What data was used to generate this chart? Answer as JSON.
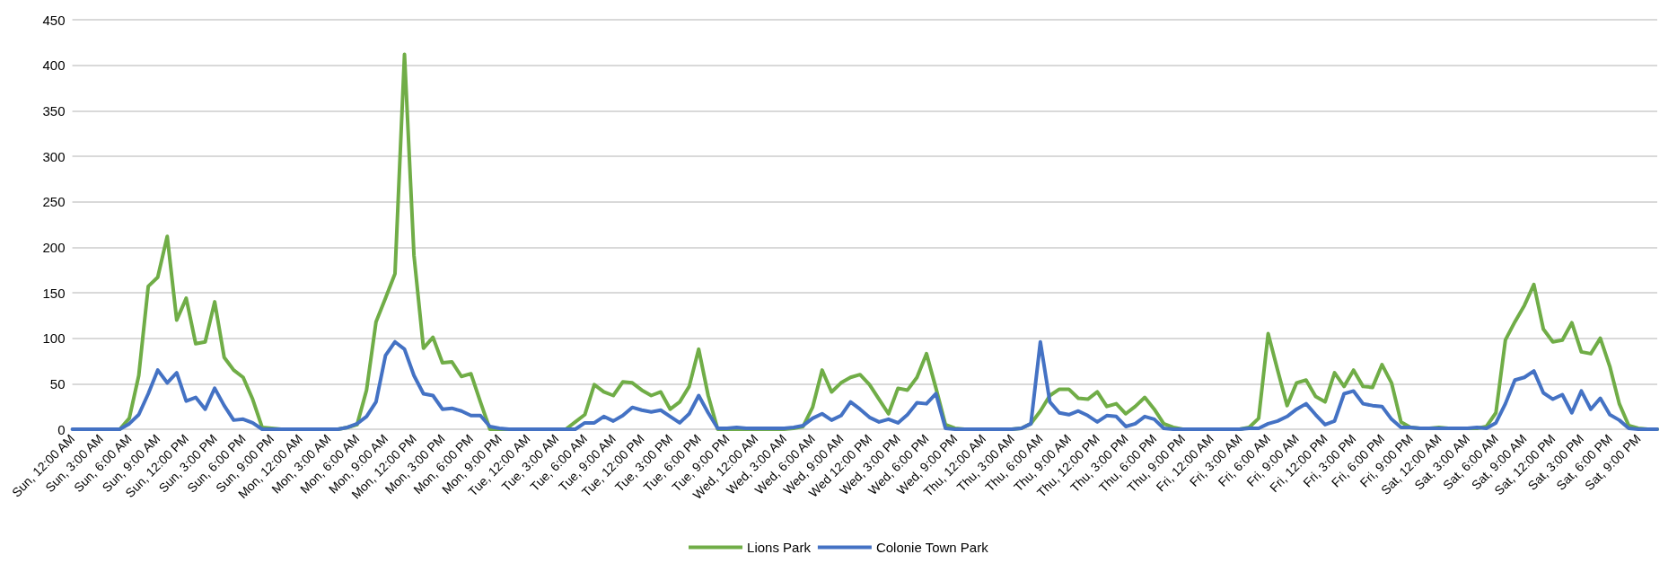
{
  "chart_data": {
    "type": "line",
    "categories": [
      "Sun, 12:00 AM",
      null,
      null,
      "Sun, 3:00 AM",
      null,
      null,
      "Sun, 6:00 AM",
      null,
      null,
      "Sun, 9:00 AM",
      null,
      null,
      "Sun, 12:00 PM",
      null,
      null,
      "Sun, 3:00 PM",
      null,
      null,
      "Sun, 6:00 PM",
      null,
      null,
      "Sun, 9:00 PM",
      null,
      null,
      "Mon, 12:00 AM",
      null,
      null,
      "Mon, 3:00 AM",
      null,
      null,
      "Mon, 6:00 AM",
      null,
      null,
      "Mon, 9:00 AM",
      null,
      null,
      "Mon, 12:00 PM",
      null,
      null,
      "Mon, 3:00 PM",
      null,
      null,
      "Mon, 6:00 PM",
      null,
      null,
      "Mon, 9:00 PM",
      null,
      null,
      "Tue, 12:00 AM",
      null,
      null,
      "Tue, 3:00 AM",
      null,
      null,
      "Tue, 6:00 AM",
      null,
      null,
      "Tue, 9:00 AM",
      null,
      null,
      "Tue, 12:00 PM",
      null,
      null,
      "Tue, 3:00 PM",
      null,
      null,
      "Tue, 6:00 PM",
      null,
      null,
      "Tue, 9:00 PM",
      null,
      null,
      "Wed, 12:00 AM",
      null,
      null,
      "Wed, 3:00 AM",
      null,
      null,
      "Wed, 6:00 AM",
      null,
      null,
      "Wed, 9:00 AM",
      null,
      null,
      "Wed 12:00 PM",
      null,
      null,
      "Wed, 3:00 PM",
      null,
      null,
      "Wed, 6:00 PM",
      null,
      null,
      "Wed, 9:00 PM",
      null,
      null,
      "Thu, 12:00 AM",
      null,
      null,
      "Thu, 3:00 AM",
      null,
      null,
      "Thu, 6:00 AM",
      null,
      null,
      "Thu, 9:00 AM",
      null,
      null,
      "Thu, 12:00 PM",
      null,
      null,
      "Thu, 3:00 PM",
      null,
      null,
      "Thu, 6:00 PM",
      null,
      null,
      "Thu, 9:00 PM",
      null,
      null,
      "Fri, 12:00 AM",
      null,
      null,
      "Fri, 3:00 AM",
      null,
      null,
      "Fri, 6:00 AM",
      null,
      null,
      "Fri, 9:00 AM",
      null,
      null,
      "Fri, 12:00 PM",
      null,
      null,
      "Fri, 3:00 PM",
      null,
      null,
      "Fri, 6:00 PM",
      null,
      null,
      "Fri, 9:00 PM",
      null,
      null,
      "Sat, 12:00 AM",
      null,
      null,
      "Sat, 3:00 AM",
      null,
      null,
      "Sat, 6:00 AM",
      null,
      null,
      "Sat, 9:00 AM",
      null,
      null,
      "Sat, 12:00 PM",
      null,
      null,
      "Sat, 3:00 PM",
      null,
      null,
      "Sat, 6:00 PM",
      null,
      null,
      "Sat, 9:00 PM",
      null,
      null
    ],
    "series": [
      {
        "name": "Lions Park",
        "color": "#70ad47",
        "values": [
          null,
          null,
          null,
          null,
          0,
          0,
          12,
          59,
          157,
          167,
          212,
          120,
          144,
          94,
          96,
          140,
          79,
          65,
          57,
          33,
          2,
          1,
          0,
          0,
          0,
          0,
          0,
          0,
          0,
          2,
          5,
          43,
          118,
          144,
          171,
          412,
          191,
          89,
          101,
          73,
          74,
          58,
          61,
          30,
          0,
          0,
          0,
          0,
          0,
          0,
          0,
          0,
          0,
          8,
          16,
          49,
          41,
          37,
          52,
          51,
          43,
          37,
          41,
          22,
          30,
          47,
          88,
          37,
          0,
          0,
          0,
          0,
          0,
          0,
          0,
          0,
          1,
          3,
          24,
          65,
          41,
          51,
          57,
          60,
          49,
          33,
          17,
          45,
          43,
          57,
          83,
          45,
          5,
          1,
          0,
          0,
          0,
          0,
          0,
          0,
          1,
          6,
          20,
          37,
          44,
          44,
          34,
          33,
          41,
          25,
          28,
          17,
          25,
          35,
          22,
          6,
          2,
          0,
          0,
          0,
          0,
          0,
          0,
          0,
          2,
          12,
          105,
          65,
          26,
          51,
          54,
          36,
          30,
          62,
          47,
          65,
          47,
          46,
          71,
          51,
          8,
          2,
          1,
          1,
          2,
          1,
          1,
          1,
          1,
          3,
          18,
          98,
          118,
          136,
          159,
          110,
          96,
          98,
          117,
          85,
          83,
          100,
          69,
          28,
          4,
          1,
          0,
          0
        ]
      },
      {
        "name": "Colonie Town Park",
        "color": "#4472c4",
        "values": [
          0,
          0,
          0,
          0,
          0,
          0,
          6,
          16,
          39,
          65,
          51,
          62,
          31,
          35,
          22,
          45,
          26,
          10,
          11,
          7,
          0,
          0,
          0,
          0,
          0,
          0,
          0,
          0,
          0,
          2,
          6,
          14,
          30,
          81,
          96,
          88,
          59,
          39,
          37,
          22,
          23,
          20,
          15,
          15,
          3,
          1,
          0,
          0,
          0,
          0,
          0,
          0,
          0,
          0,
          7,
          7,
          14,
          9,
          15,
          24,
          21,
          19,
          21,
          14,
          7,
          17,
          37,
          18,
          1,
          1,
          2,
          1,
          1,
          1,
          1,
          1,
          2,
          4,
          12,
          17,
          10,
          15,
          30,
          22,
          13,
          8,
          11,
          7,
          16,
          29,
          28,
          39,
          1,
          0,
          0,
          0,
          0,
          0,
          0,
          0,
          1,
          6,
          96,
          30,
          18,
          16,
          20,
          15,
          8,
          15,
          14,
          3,
          6,
          14,
          11,
          1,
          0,
          0,
          0,
          0,
          0,
          0,
          0,
          0,
          1,
          1,
          6,
          9,
          14,
          22,
          28,
          16,
          5,
          9,
          39,
          42,
          28,
          26,
          25,
          11,
          2,
          2,
          1,
          1,
          1,
          1,
          1,
          1,
          2,
          1,
          7,
          28,
          54,
          57,
          64,
          40,
          33,
          38,
          18,
          42,
          22,
          34,
          16,
          10,
          1,
          0,
          0,
          0
        ]
      }
    ],
    "ylim": [
      0,
      450
    ],
    "yticks": [
      0,
      50,
      100,
      150,
      200,
      250,
      300,
      350,
      400,
      450
    ],
    "grid": "y",
    "legend": "bottom",
    "marker": "none",
    "line_style": "solid"
  }
}
